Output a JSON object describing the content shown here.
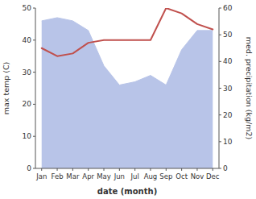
{
  "chart_data": {
    "type": "line",
    "xlabel": "date (month)",
    "ylabel": "max temp (C)",
    "y2label": "med. precipitation (kg/m2)",
    "categories": [
      "Jan",
      "Feb",
      "Mar",
      "Apr",
      "May",
      "Jun",
      "Jul",
      "Aug",
      "Sep",
      "Oct",
      "Nov",
      "Dec"
    ],
    "series": [
      {
        "type": "area",
        "color": "#b8c4e8",
        "values": [
          46,
          47,
          46,
          43,
          32,
          26,
          27,
          29,
          26,
          37,
          43,
          43
        ]
      },
      {
        "type": "line",
        "color": "#c0504d",
        "axis": "y2",
        "values": [
          45,
          42,
          43,
          47,
          48,
          48,
          48,
          48,
          60,
          58,
          54,
          52
        ]
      }
    ],
    "ylim": [
      0,
      50
    ],
    "yticks": [
      0,
      10,
      20,
      30,
      40,
      50
    ],
    "y2lim": [
      0,
      60
    ],
    "y2ticks": [
      0,
      10,
      20,
      30,
      40,
      50,
      60
    ]
  }
}
